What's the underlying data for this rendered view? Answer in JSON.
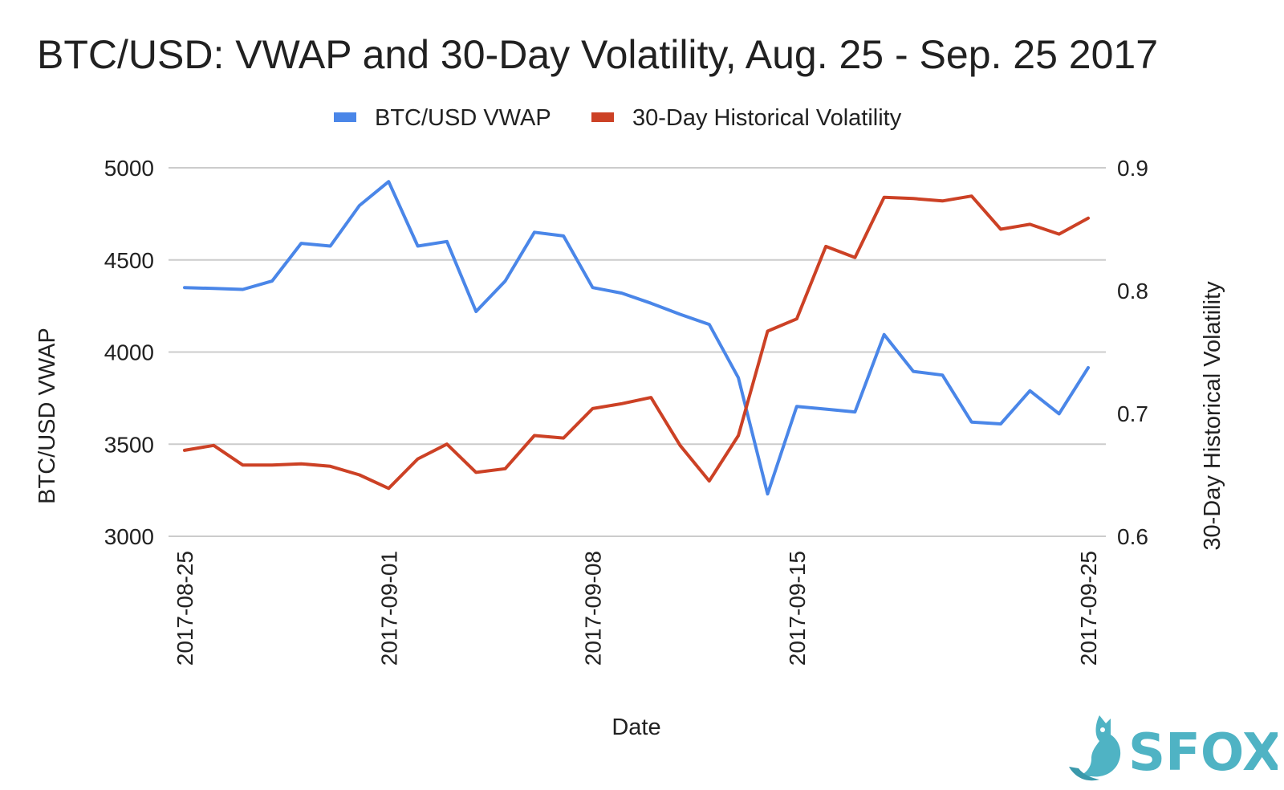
{
  "chart_data": {
    "type": "line",
    "title": "BTC/USD: VWAP and 30-Day Volatility, Aug. 25 - Sep. 25 2017",
    "xlabel": "Date",
    "ylabel": "BTC/USD VWAP",
    "y2label": "30-Day Historical Volatility",
    "ylim": [
      3000,
      5000
    ],
    "y2lim": [
      0.6,
      0.9
    ],
    "yticks": [
      "3000",
      "3500",
      "4000",
      "4500",
      "5000"
    ],
    "y2ticks": [
      "0.6",
      "0.7",
      "0.8",
      "0.9"
    ],
    "xticks": [
      "2017-08-25",
      "2017-09-01",
      "2017-09-08",
      "2017-09-15",
      "2017-09-25"
    ],
    "grid": true,
    "legend_position": "top-center",
    "x": [
      "2017-08-25",
      "2017-08-26",
      "2017-08-27",
      "2017-08-28",
      "2017-08-29",
      "2017-08-30",
      "2017-08-31",
      "2017-09-01",
      "2017-09-02",
      "2017-09-03",
      "2017-09-04",
      "2017-09-05",
      "2017-09-06",
      "2017-09-07",
      "2017-09-08",
      "2017-09-09",
      "2017-09-10",
      "2017-09-11",
      "2017-09-12",
      "2017-09-13",
      "2017-09-14",
      "2017-09-15",
      "2017-09-16",
      "2017-09-17",
      "2017-09-18",
      "2017-09-19",
      "2017-09-20",
      "2017-09-21",
      "2017-09-22",
      "2017-09-23",
      "2017-09-24",
      "2017-09-25"
    ],
    "series": [
      {
        "name": "BTC/USD VWAP",
        "axis": "left",
        "color": "#4a86e8",
        "values": [
          4350,
          4345,
          4340,
          4385,
          4590,
          4575,
          4795,
          4925,
          4575,
          4600,
          4220,
          4385,
          4650,
          4630,
          4350,
          4320,
          4265,
          4205,
          4150,
          3860,
          3230,
          3705,
          3690,
          3675,
          4095,
          3895,
          3875,
          3620,
          3610,
          3790,
          3665,
          3915
        ]
      },
      {
        "name": "30-Day Historical Volatility",
        "axis": "right",
        "color": "#cc4125",
        "values": [
          0.67,
          0.674,
          0.658,
          0.658,
          0.659,
          0.657,
          0.65,
          0.639,
          0.663,
          0.675,
          0.652,
          0.655,
          0.682,
          0.68,
          0.704,
          0.708,
          0.713,
          0.674,
          0.645,
          0.682,
          0.767,
          0.777,
          0.836,
          0.827,
          0.876,
          0.875,
          0.873,
          0.877,
          0.85,
          0.854,
          0.846,
          0.859
        ]
      }
    ]
  },
  "logo": {
    "text": "SFOX",
    "color": "#4fb3c4",
    "icon": "fox-icon"
  }
}
